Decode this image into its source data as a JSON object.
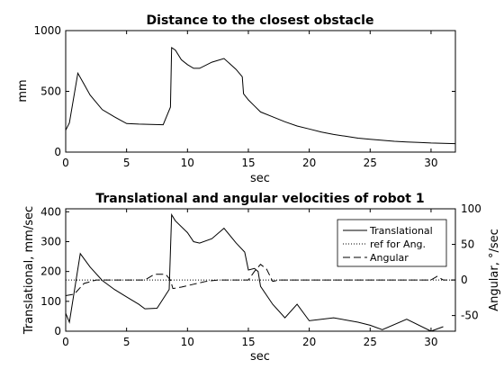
{
  "chart_data": [
    {
      "type": "line",
      "title": "Distance to the closest obstacle",
      "xlabel": "sec",
      "ylabel": "mm",
      "xlim": [
        0,
        32
      ],
      "ylim": [
        0,
        1000
      ],
      "xticks": [
        0,
        5,
        10,
        15,
        20,
        25,
        30
      ],
      "yticks": [
        0,
        500,
        1000
      ],
      "grid": false,
      "series": [
        {
          "color": "#000000",
          "dash": "solid",
          "x": [
            0,
            0.3,
            1.0,
            1.5,
            2.0,
            3.0,
            4.0,
            5.0,
            6.0,
            7.0,
            8.0,
            8.6,
            8.7,
            9.0,
            9.5,
            10.0,
            10.5,
            11.0,
            12.0,
            13.0,
            14.0,
            14.5,
            14.6,
            15.0,
            15.5,
            16.0,
            17.0,
            18.0,
            19.0,
            20.0,
            21.0,
            22.0,
            23.0,
            24.0,
            25.0,
            26.0,
            27.0,
            28.0,
            29.0,
            30.0,
            31.0,
            32.0
          ],
          "y": [
            180,
            240,
            650,
            560,
            470,
            350,
            290,
            235,
            230,
            228,
            225,
            370,
            860,
            840,
            760,
            720,
            690,
            690,
            740,
            770,
            680,
            620,
            480,
            430,
            380,
            330,
            290,
            250,
            215,
            190,
            165,
            145,
            130,
            115,
            105,
            97,
            89,
            84,
            80,
            75,
            72,
            70
          ]
        }
      ]
    },
    {
      "type": "line",
      "title": "Translational and angular velocities of robot 1",
      "xlabel": "sec",
      "ylabel": "Translational, mm/sec",
      "y2label": "Angular, °/sec",
      "xlim": [
        0,
        32
      ],
      "ylim": [
        0,
        410
      ],
      "y2lim": [
        -72,
        100
      ],
      "xticks": [
        0,
        5,
        10,
        15,
        20,
        25,
        30
      ],
      "yticks": [
        0,
        100,
        200,
        300,
        400
      ],
      "y2ticks": [
        -50,
        0,
        50,
        100
      ],
      "grid": false,
      "legend": {
        "position": "top-right",
        "entries": [
          "Translational",
          "ref for Ang.",
          "Angular"
        ]
      },
      "series": [
        {
          "name": "Translational",
          "axis": "left",
          "dash": "solid",
          "x": [
            0,
            0.3,
            1.2,
            2.0,
            3.0,
            4.0,
            5.0,
            6.0,
            6.5,
            7.5,
            8.5,
            8.7,
            9.0,
            10.0,
            10.5,
            11.0,
            12.0,
            13.0,
            14.0,
            14.7,
            15.0,
            15.5,
            15.8,
            16.0,
            17.0,
            18.0,
            19.0,
            20.0,
            22.0,
            24.0,
            25.0,
            26.0,
            28.0,
            30.0,
            31.0
          ],
          "y": [
            60,
            30,
            260,
            215,
            170,
            140,
            115,
            90,
            75,
            77,
            140,
            390,
            370,
            330,
            300,
            295,
            310,
            345,
            295,
            265,
            205,
            210,
            200,
            150,
            90,
            45,
            90,
            35,
            45,
            30,
            20,
            5,
            40,
            0,
            15
          ]
        },
        {
          "name": "ref for Ang.",
          "axis": "right",
          "dash": "dotted",
          "x": [
            0,
            32
          ],
          "y": [
            0,
            0
          ]
        },
        {
          "name": "Angular",
          "axis": "right",
          "dash": "dashed",
          "x": [
            0,
            0.7,
            1.5,
            2.5,
            3.0,
            5.0,
            6.5,
            7.3,
            8.2,
            8.6,
            8.8,
            9.5,
            10.5,
            11.5,
            12.5,
            14.5,
            15.0,
            15.5,
            16.0,
            16.5,
            17.0,
            17.5,
            20.0,
            25.0,
            28.0,
            30.0,
            30.5,
            31.0,
            32.0
          ],
          "y": [
            -22,
            -20,
            -5,
            0,
            0,
            0,
            0,
            8,
            8,
            0,
            -12,
            -10,
            -6,
            -2,
            0,
            0,
            0,
            12,
            22,
            15,
            -2,
            0,
            0,
            0,
            0,
            0,
            5,
            0,
            0
          ]
        }
      ]
    }
  ]
}
